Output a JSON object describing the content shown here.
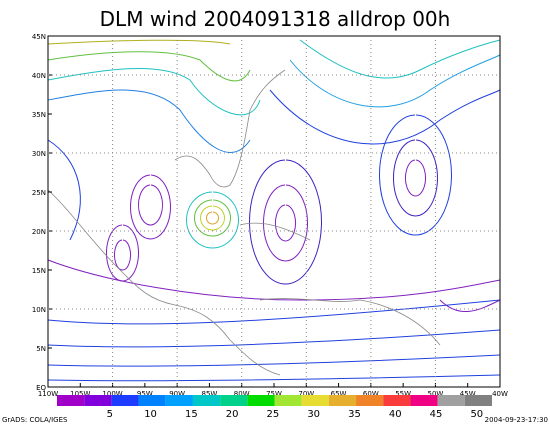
{
  "title": "DLM wind 2004091318 alldrop 00h",
  "x_axis": {
    "labels": [
      "110W",
      "105W",
      "100W",
      "95W",
      "90W",
      "85W",
      "80W",
      "75W",
      "70W",
      "65W",
      "60W",
      "55W",
      "50W",
      "45W",
      "40W"
    ]
  },
  "y_axis": {
    "labels": [
      "EQ",
      "5N",
      "10N",
      "15N",
      "20N",
      "25N",
      "30N",
      "35N",
      "40N",
      "45N"
    ]
  },
  "colorbar": {
    "labels": [
      "5",
      "10",
      "15",
      "20",
      "25",
      "30",
      "35",
      "40",
      "45",
      "50"
    ]
  },
  "footer": {
    "left": "GrADS: COLA/IGES",
    "right": "2004-09-23-17:30"
  }
}
